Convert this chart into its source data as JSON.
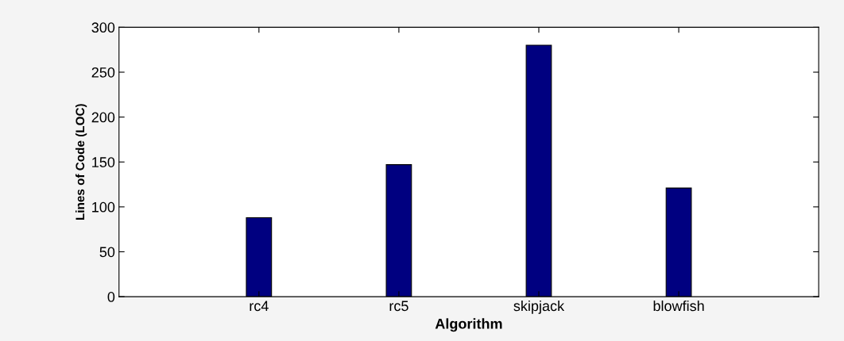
{
  "chart_data": {
    "type": "bar",
    "xlabel": "Algorithm",
    "ylabel": "Lines of Code (LOC)",
    "categories": [
      "rc4",
      "rc5",
      "skipjack",
      "blowfish"
    ],
    "values": [
      88,
      147,
      280,
      121
    ],
    "color": "#000080",
    "ylim": [
      0,
      300
    ],
    "yticks": [
      0,
      50,
      100,
      150,
      200,
      250,
      300
    ],
    "grid": false
  }
}
